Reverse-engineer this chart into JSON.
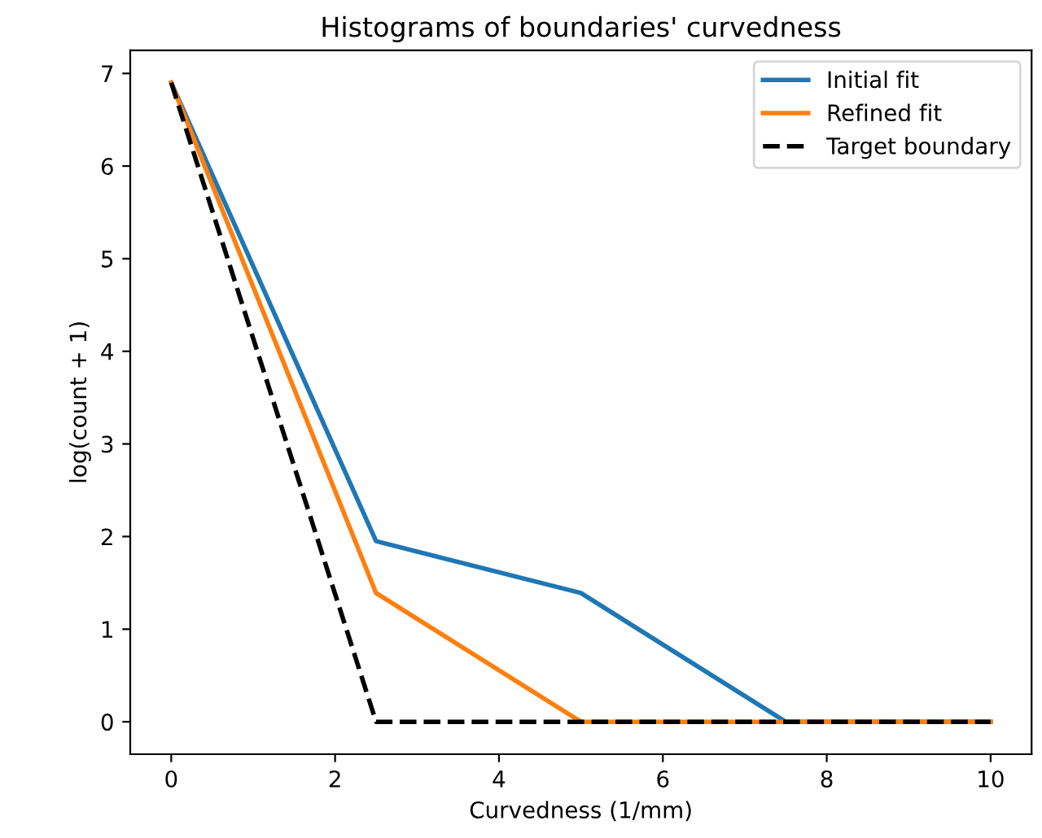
{
  "chart_data": {
    "type": "line",
    "title": "Histograms of boundaries' curvedness",
    "xlabel": "Curvedness (1/mm)",
    "ylabel": "log(count + 1)",
    "x": [
      0,
      2.5,
      5,
      7.5,
      10
    ],
    "series": [
      {
        "name": "Initial fit",
        "color": "#1f77b4",
        "values": [
          6.9,
          1.95,
          1.39,
          0,
          0
        ]
      },
      {
        "name": "Refined fit",
        "color": "#ff7f0e",
        "values": [
          6.9,
          1.39,
          0,
          0,
          0
        ]
      },
      {
        "name": "Target boundary",
        "color": "#000000",
        "values": [
          6.9,
          0,
          0,
          0,
          0
        ],
        "line_style": "dashed"
      }
    ],
    "xlim": [
      -0.5,
      10.5
    ],
    "ylim": [
      -0.35,
      7.25
    ],
    "xticks": [
      0,
      2,
      4,
      6,
      8,
      10
    ],
    "yticks": [
      0,
      1,
      2,
      3,
      4,
      5,
      6,
      7
    ],
    "legend": "top right",
    "grid": false
  }
}
